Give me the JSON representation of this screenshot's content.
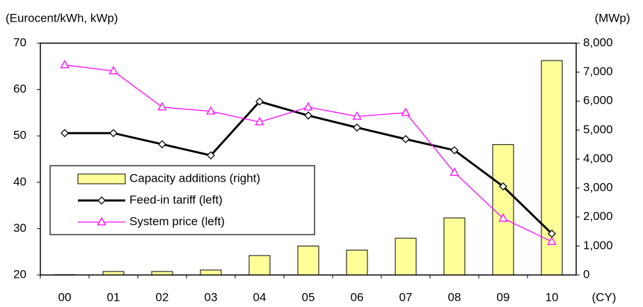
{
  "chart_data": {
    "type": "bar",
    "y_label": "(Eurocent/kWh, kWp)",
    "y2_label": "(MWp)",
    "x_label": "(CY)",
    "categories": [
      "00",
      "01",
      "02",
      "03",
      "04",
      "05",
      "06",
      "07",
      "08",
      "09",
      "10"
    ],
    "series": [
      {
        "name": "Capacity additions (right)",
        "type": "bar",
        "axis": "y2",
        "color": "#ffff99",
        "values": [
          10,
          120,
          120,
          170,
          670,
          1000,
          860,
          1270,
          1970,
          4500,
          7400
        ]
      },
      {
        "name": "Feed-in tariff (left)",
        "type": "line",
        "marker": "diamond",
        "color": "#000000",
        "values": [
          50.6,
          50.6,
          48.2,
          45.8,
          57.4,
          54.4,
          51.8,
          49.3,
          46.9,
          39.1,
          28.9
        ]
      },
      {
        "name": "System price (left)",
        "type": "line",
        "marker": "triangle",
        "color": "#ff00ff",
        "values": [
          65.3,
          64.0,
          56.2,
          55.3,
          53.0,
          56.2,
          54.2,
          55.0,
          42.1,
          32.2,
          27.2
        ]
      }
    ],
    "ylim": [
      20,
      70
    ],
    "yticks": [
      20,
      30,
      40,
      50,
      60,
      70
    ],
    "y2lim": [
      0,
      8000
    ],
    "y2ticks": [
      0,
      {
        "value": 1000,
        "label": "1,000"
      },
      {
        "value": 2000,
        "label": "2,000"
      },
      {
        "value": 3000,
        "label": "3,000"
      },
      {
        "value": 4000,
        "label": "4,000"
      },
      {
        "value": 5000,
        "label": "5,000"
      },
      {
        "value": 6000,
        "label": "6,000"
      },
      {
        "value": 7000,
        "label": "7,000"
      },
      {
        "value": 8000,
        "label": "8,000"
      }
    ],
    "grid": false
  }
}
